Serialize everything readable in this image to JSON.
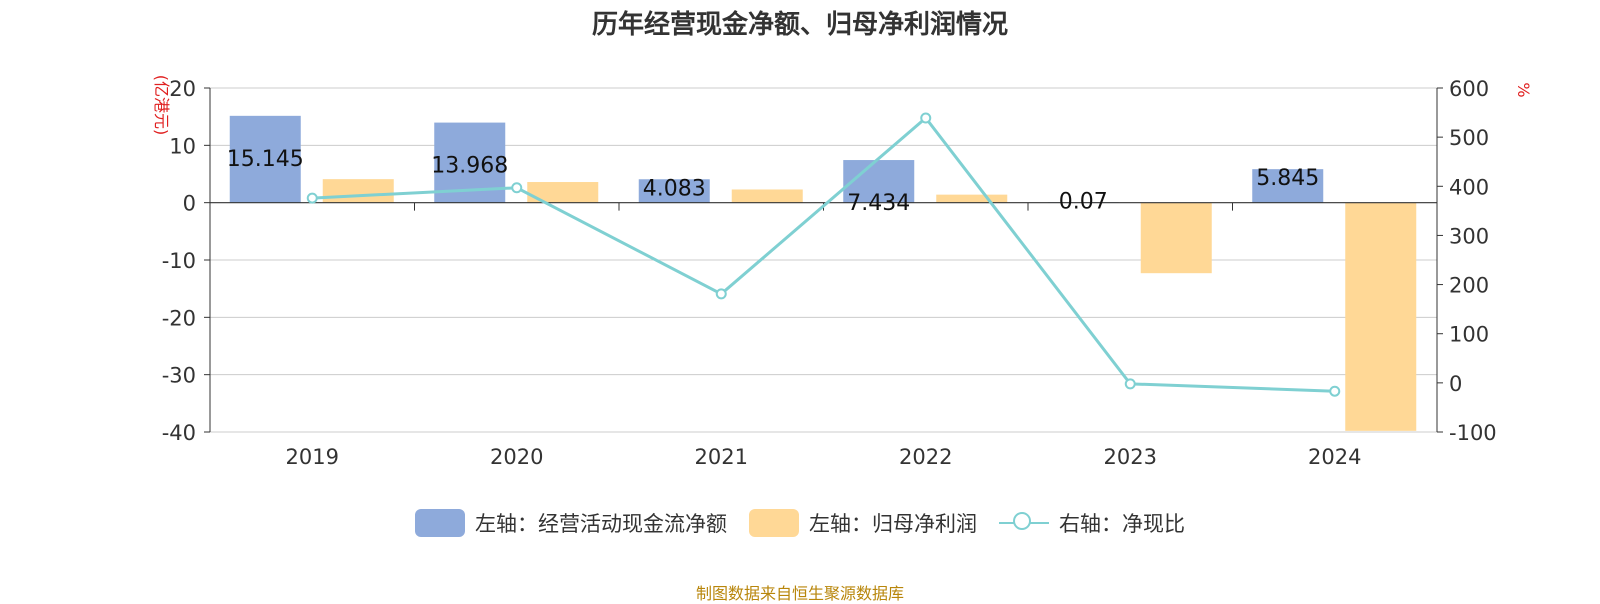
{
  "title": "历年经营现金净额、归母净利润情况",
  "source": "制图数据来自恒生聚源数据库",
  "colors": {
    "cashflow": "#8eaadb",
    "profit": "#ffd896",
    "ratio": "#7fd0d2",
    "right_axis": "#e02020",
    "grid": "#cccccc",
    "text": "#333333"
  },
  "legend": [
    {
      "label": "左轴：经营活动现金流净额",
      "kind": "bar",
      "color_key": "cashflow"
    },
    {
      "label": "左轴：归母净利润",
      "kind": "bar",
      "color_key": "profit"
    },
    {
      "label": "右轴：净现比",
      "kind": "line",
      "color_key": "ratio"
    }
  ],
  "chart_data": {
    "type": "bar",
    "title": "历年经营现金净额、归母净利润情况",
    "categories": [
      "2019",
      "2020",
      "2021",
      "2022",
      "2023",
      "2024"
    ],
    "series": [
      {
        "name": "左轴：经营活动现金流净额",
        "axis": "left",
        "type": "bar",
        "values": [
          15.145,
          13.968,
          4.083,
          7.434,
          0.07,
          5.845
        ],
        "labels": [
          "15.145",
          "13.968",
          "4.083",
          "7.434",
          "0.07",
          "5.845"
        ]
      },
      {
        "name": "左轴：归母净利润",
        "axis": "left",
        "type": "bar",
        "values": [
          4.1,
          3.6,
          2.3,
          1.4,
          -12.3,
          -39.8
        ]
      },
      {
        "name": "右轴：净现比",
        "axis": "right",
        "type": "line",
        "values": [
          376,
          397,
          181,
          539,
          -2,
          -17
        ]
      }
    ],
    "left_axis": {
      "label": "(亿港元)",
      "ylim": [
        -40,
        20
      ],
      "ticks": [
        20,
        10,
        0,
        -10,
        -20,
        -30,
        -40
      ]
    },
    "right_axis": {
      "label": "%",
      "ylim": [
        -100,
        600
      ],
      "ticks": [
        600,
        500,
        400,
        300,
        200,
        100,
        0,
        -100
      ]
    },
    "grid": true,
    "legend_position": "bottom"
  }
}
